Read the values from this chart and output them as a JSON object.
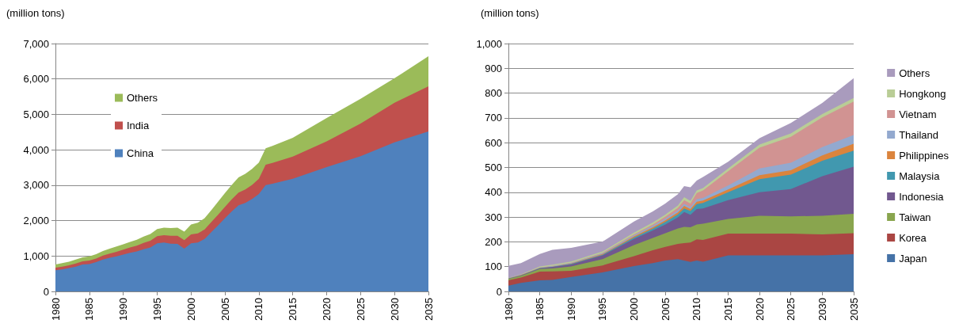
{
  "chart_data": [
    {
      "type": "area",
      "ylabel": "(million tons)",
      "stacked": true,
      "grid": "y",
      "legend": "top left",
      "x": [
        1980,
        1981,
        1982,
        1983,
        1984,
        1985,
        1986,
        1987,
        1988,
        1989,
        1990,
        1991,
        1992,
        1993,
        1994,
        1995,
        1996,
        1997,
        1998,
        1999,
        2000,
        2001,
        2002,
        2003,
        2004,
        2005,
        2006,
        2007,
        2008,
        2009,
        2010,
        2011,
        2012,
        2015,
        2020,
        2025,
        2030,
        2035
      ],
      "xlim": [
        1980,
        2035
      ],
      "xticks": [
        1980,
        1985,
        1990,
        1995,
        2000,
        2005,
        2010,
        2015,
        2020,
        2025,
        2030,
        2035
      ],
      "ylim": [
        0,
        7000
      ],
      "yticks": [
        0,
        {
          "value": 1000,
          "label": "1,000"
        },
        {
          "value": 2000,
          "label": "2,000"
        },
        {
          "value": 3000,
          "label": "3,000"
        },
        {
          "value": 4000,
          "label": "4,000"
        },
        {
          "value": 5000,
          "label": "5,000"
        },
        {
          "value": 6000,
          "label": "6,000"
        },
        {
          "value": 7000,
          "label": "7,000"
        }
      ],
      "series": [
        {
          "name": "China",
          "color": "#4f81bd",
          "values": [
            600,
            620,
            660,
            700,
            760,
            770,
            830,
            900,
            950,
            990,
            1040,
            1090,
            1130,
            1190,
            1240,
            1360,
            1380,
            1350,
            1340,
            1210,
            1360,
            1380,
            1480,
            1680,
            1870,
            2070,
            2260,
            2430,
            2500,
            2610,
            2750,
            3000,
            3040,
            3180,
            3510,
            3820,
            4210,
            4520
          ]
        },
        {
          "name": "India",
          "color": "#c0504d",
          "values": [
            70,
            80,
            80,
            90,
            90,
            100,
            100,
            110,
            120,
            130,
            140,
            150,
            160,
            180,
            190,
            200,
            210,
            220,
            230,
            240,
            250,
            260,
            270,
            280,
            300,
            320,
            340,
            360,
            380,
            400,
            430,
            580,
            590,
            630,
            730,
            920,
            1120,
            1270
          ]
        },
        {
          "name": "Others",
          "color": "#9bbb59",
          "values": [
            90,
            100,
            100,
            110,
            110,
            120,
            120,
            130,
            140,
            150,
            150,
            160,
            170,
            180,
            190,
            200,
            210,
            220,
            230,
            240,
            280,
            300,
            320,
            340,
            370,
            390,
            410,
            430,
            440,
            450,
            460,
            460,
            480,
            530,
            660,
            700,
            690,
            850
          ]
        }
      ]
    },
    {
      "type": "area",
      "ylabel": "(million tons)",
      "stacked": true,
      "grid": "y",
      "legend": "right",
      "x": [
        1980,
        1982,
        1985,
        1987,
        1990,
        1995,
        2000,
        2003,
        2005,
        2007,
        2008,
        2009,
        2010,
        2011,
        2015,
        2020,
        2025,
        2030,
        2035
      ],
      "xlim": [
        1980,
        2035
      ],
      "xticks": [
        1980,
        1985,
        1990,
        1995,
        2000,
        2005,
        2010,
        2015,
        2020,
        2025,
        2030,
        2035
      ],
      "ylim": [
        0,
        1000
      ],
      "yticks": [
        0,
        100,
        200,
        300,
        400,
        500,
        600,
        700,
        800,
        900,
        {
          "value": 1000,
          "label": "1,000"
        }
      ],
      "series": [
        {
          "name": "Japan",
          "color": "#4572a7",
          "values": [
            23,
            34,
            45,
            46,
            58,
            77,
            102,
            114,
            125,
            130,
            125,
            119,
            125,
            120,
            145,
            145,
            145,
            145,
            150
          ]
        },
        {
          "name": "Korea",
          "color": "#aa4643",
          "values": [
            22,
            22,
            35,
            35,
            25,
            28,
            40,
            52,
            55,
            62,
            70,
            78,
            85,
            88,
            88,
            88,
            88,
            85,
            85
          ]
        },
        {
          "name": "Taiwan",
          "color": "#89a54e",
          "values": [
            5,
            6,
            10,
            12,
            18,
            25,
            45,
            50,
            55,
            62,
            65,
            62,
            60,
            65,
            59,
            72,
            70,
            75,
            78
          ]
        },
        {
          "name": "Indonesia",
          "color": "#71588f",
          "values": [
            1,
            2,
            3,
            5,
            8,
            15,
            25,
            30,
            35,
            45,
            60,
            50,
            62,
            62,
            76,
            95,
            110,
            160,
            190
          ]
        },
        {
          "name": "Malaysia",
          "color": "#4198af",
          "values": [
            1,
            1,
            1,
            1,
            2,
            3,
            5,
            7,
            10,
            12,
            15,
            15,
            20,
            22,
            32,
            53,
            58,
            62,
            65
          ]
        },
        {
          "name": "Philippines",
          "color": "#db843d",
          "values": [
            1,
            1,
            1,
            1,
            2,
            3,
            5,
            6,
            7,
            8,
            10,
            8,
            10,
            10,
            11,
            16,
            18,
            22,
            28
          ]
        },
        {
          "name": "Thailand",
          "color": "#93a9cf",
          "values": [
            1,
            1,
            1,
            2,
            2,
            3,
            5,
            6,
            7,
            8,
            8,
            8,
            10,
            10,
            16,
            27,
            30,
            33,
            35
          ]
        },
        {
          "name": "Vietnam",
          "color": "#d19392",
          "values": [
            0,
            0,
            1,
            1,
            1,
            2,
            3,
            5,
            8,
            10,
            15,
            15,
            25,
            30,
            58,
            84,
            105,
            120,
            135
          ]
        },
        {
          "name": "Hongkong",
          "color": "#b9cd96",
          "values": [
            1,
            2,
            4,
            5,
            5,
            5,
            7,
            8,
            8,
            10,
            12,
            10,
            10,
            10,
            11,
            13,
            13,
            14,
            14
          ]
        },
        {
          "name": "Others",
          "color": "#a99bbd",
          "values": [
            48,
            45,
            50,
            60,
            55,
            40,
            45,
            45,
            45,
            45,
            45,
            55,
            40,
            45,
            27,
            25,
            43,
            44,
            80
          ]
        }
      ]
    }
  ]
}
